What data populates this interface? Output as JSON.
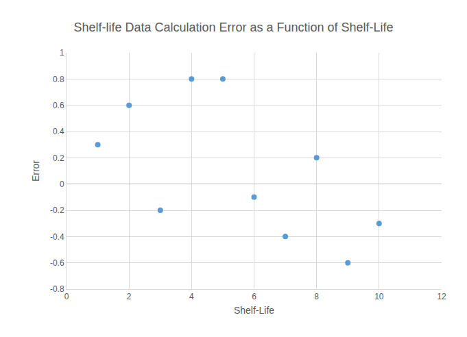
{
  "chart_data": {
    "type": "scatter",
    "title": "Shelf-life Data Calculation Error as a Function of Shelf-Life",
    "x_label": "Shelf-Life",
    "y_label": "Error",
    "x": [
      1,
      2,
      3,
      4,
      5,
      6,
      7,
      8,
      9,
      10
    ],
    "values": [
      0.3,
      0.6,
      -0.2,
      0.8,
      0.8,
      -0.1,
      -0.4,
      0.2,
      -0.6,
      -0.3
    ],
    "color": "#5b9bd5",
    "marker": "circle",
    "xlim": [
      0,
      12
    ],
    "xticks": [
      0,
      2,
      4,
      6,
      8,
      10,
      12
    ],
    "ylim": [
      -0.8,
      1
    ],
    "yticks": [
      -0.8,
      -0.6,
      -0.4,
      -0.2,
      0,
      0.2,
      0.4,
      0.6,
      0.8,
      1
    ],
    "grid": true
  }
}
